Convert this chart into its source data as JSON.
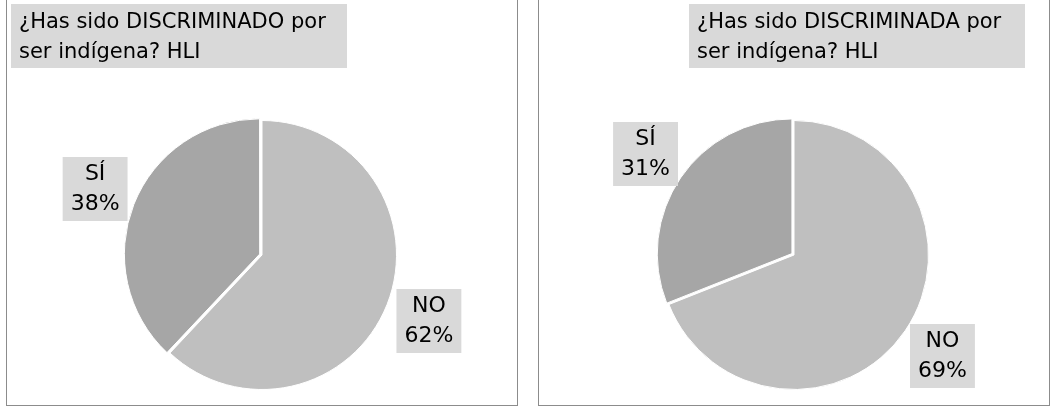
{
  "chart_data": [
    {
      "type": "pie",
      "title": "¿Has sido DISCRIMINADO por ser indígena?  HLI",
      "categories": [
        "NO",
        "SÍ"
      ],
      "values": [
        62,
        38
      ],
      "value_labels": [
        "62%",
        "38%"
      ],
      "colors": [
        "#bfbfbf",
        "#a6a6a6"
      ],
      "legend": false
    },
    {
      "type": "pie",
      "title": "¿Has sido DISCRIMINADA por ser indígena?  HLI",
      "categories": [
        "NO",
        "SÍ"
      ],
      "values": [
        69,
        31
      ],
      "value_labels": [
        "69%",
        "31%"
      ],
      "colors": [
        "#bfbfbf",
        "#a6a6a6"
      ],
      "legend": false
    }
  ]
}
